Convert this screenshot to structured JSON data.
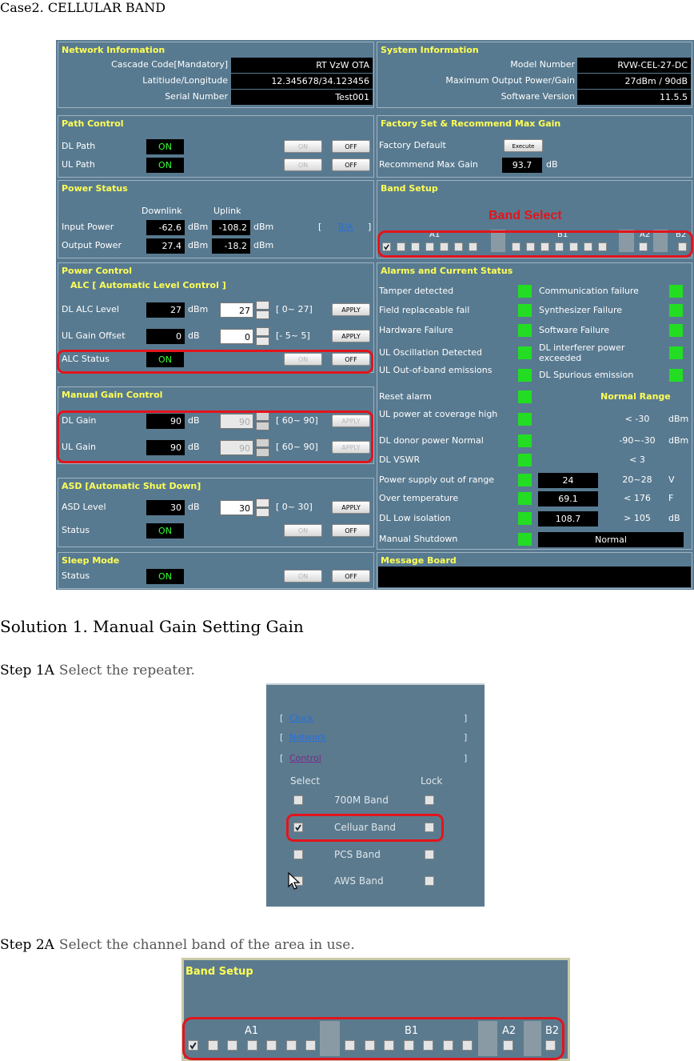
{
  "case_title": "Case2. CELLULAR BAND",
  "network_info": {
    "title": "Network Information",
    "rows": [
      [
        "Cascade Code[Mandatory]",
        "RT VzW OTA"
      ],
      [
        "Latitiude/Longitude",
        "12.345678/34.123456"
      ],
      [
        "Serial Number",
        "Test001"
      ]
    ]
  },
  "system_info": {
    "title": "System Information",
    "rows": [
      [
        "Model Number",
        "RVW-CEL-27-DC"
      ],
      [
        "Maximum Output Power/Gain",
        "27dBm / 90dB"
      ],
      [
        "Software Version",
        "11.5.5"
      ]
    ]
  },
  "path_control": {
    "title": "Path Control",
    "rows": [
      {
        "label": "DL Path",
        "status": "ON"
      },
      {
        "label": "UL Path",
        "status": "ON"
      }
    ],
    "on_button": "ON",
    "off_button": "OFF"
  },
  "factory_set": {
    "title": "Factory Set & Recommend Max Gain",
    "default_label": "Factory Default",
    "execute": "Execute",
    "recommend_label": "Recommend Max Gain",
    "recommend_value": 93.7,
    "recommend_unit": "dB"
  },
  "power_status": {
    "title": "Power Status",
    "headers": [
      "Downlink",
      "Uplink"
    ],
    "rows": [
      {
        "label": "Input Power",
        "dl": -62.6,
        "ul": -108.2,
        "unit": "dBm"
      },
      {
        "label": "Output Power",
        "dl": 27.4,
        "ul": -18.2,
        "unit": "dBm"
      }
    ],
    "brackets": [
      "[",
      "]"
    ],
    "link": "B/A"
  },
  "band_setup": {
    "title": "Band Setup",
    "annotation": "Band Select",
    "labels": [
      "A1",
      "B1",
      "A2",
      "B2"
    ]
  },
  "power_control": {
    "title": "Power Control",
    "subtitle": "ALC [ Automatic Level Control ]",
    "rows": [
      {
        "label": "DL ALC Level",
        "value": 27,
        "unit": "dBm",
        "input": 27,
        "range": "[ 0~ 27]",
        "apply": "APPLY"
      },
      {
        "label": "UL Gain Offset",
        "value": 0,
        "unit": "dB",
        "input": 0,
        "range": "[- 5~  5]",
        "apply": "APPLY"
      }
    ],
    "status_label": "ALC Status",
    "status": "ON",
    "on_button": "ON",
    "off_button": "OFF"
  },
  "manual_gain": {
    "title": "Manual Gain Control",
    "rows": [
      {
        "label": "DL Gain",
        "value": 90,
        "unit": "dB",
        "input": 90,
        "range": "[ 60~ 90]",
        "apply": "APPLY"
      },
      {
        "label": "UL Gain",
        "value": 90,
        "unit": "dB",
        "input": 90,
        "range": "[ 60~ 90]",
        "apply": "APPLY"
      }
    ]
  },
  "asd": {
    "title": "ASD [Automatic Shut Down]",
    "rows": [
      {
        "label": "ASD Level",
        "value": 30,
        "unit": "dB",
        "input": 30,
        "range": "[ 0~ 30]",
        "apply": "APPLY"
      }
    ],
    "status_label": "Status",
    "status": "ON",
    "on_button": "ON",
    "off_button": "OFF"
  },
  "sleep_mode": {
    "title": "Sleep Mode",
    "status_label": "Status",
    "status": "ON",
    "on_button": "ON",
    "off_button": "OFF"
  },
  "alarms": {
    "title": "Alarms and Current Status",
    "left": [
      "Tamper detected",
      "Field replaceable fail",
      "Hardware Failure",
      "UL Oscillation Detected",
      "UL Out-of-band emissions",
      "Reset alarm",
      "UL power at coverage high",
      "DL donor power Normal",
      "DL VSWR",
      "Power supply out of range",
      "Over temperature",
      "DL Low isolation",
      "Manual Shutdown"
    ],
    "right": [
      "Communication failure",
      "Synthesizer Failure",
      "Software Failure",
      "DL interferer power exceeded",
      "DL Spurious emission"
    ],
    "normal_range_title": "Normal Range",
    "ranges": [
      {
        "range": "< -30",
        "unit": "dBm"
      },
      {
        "range": "-90~-30",
        "unit": "dBm"
      },
      {
        "range": "< 3"
      }
    ],
    "measurements": [
      {
        "value": 24,
        "range": "20~28",
        "unit": "V"
      },
      {
        "value": 69.1,
        "range": "< 176",
        "unit": "F"
      },
      {
        "value": 108.7,
        "range": "> 105",
        "unit": "dB"
      }
    ],
    "shutdown": "Normal"
  },
  "message_board": {
    "title": "Message Board"
  },
  "solution_title": "Solution 1. Manual Gain Setting Gain",
  "step1": {
    "label": "Step 1A",
    "text": "Select the repeater."
  },
  "select_panel": {
    "brackets": [
      "[",
      "]"
    ],
    "links": [
      "Clock",
      "Network",
      "Control"
    ],
    "headers": [
      "Select",
      "Lock"
    ],
    "bands": [
      "700M Band",
      "Celluar Band",
      "PCS Band",
      "AWS Band"
    ]
  },
  "step2": {
    "label": "Step 2A",
    "text": "Select the channel band of the area in use."
  },
  "band_crop": {
    "title": "Band Setup",
    "labels": [
      "A1",
      "B1",
      "A2",
      "B2"
    ]
  }
}
